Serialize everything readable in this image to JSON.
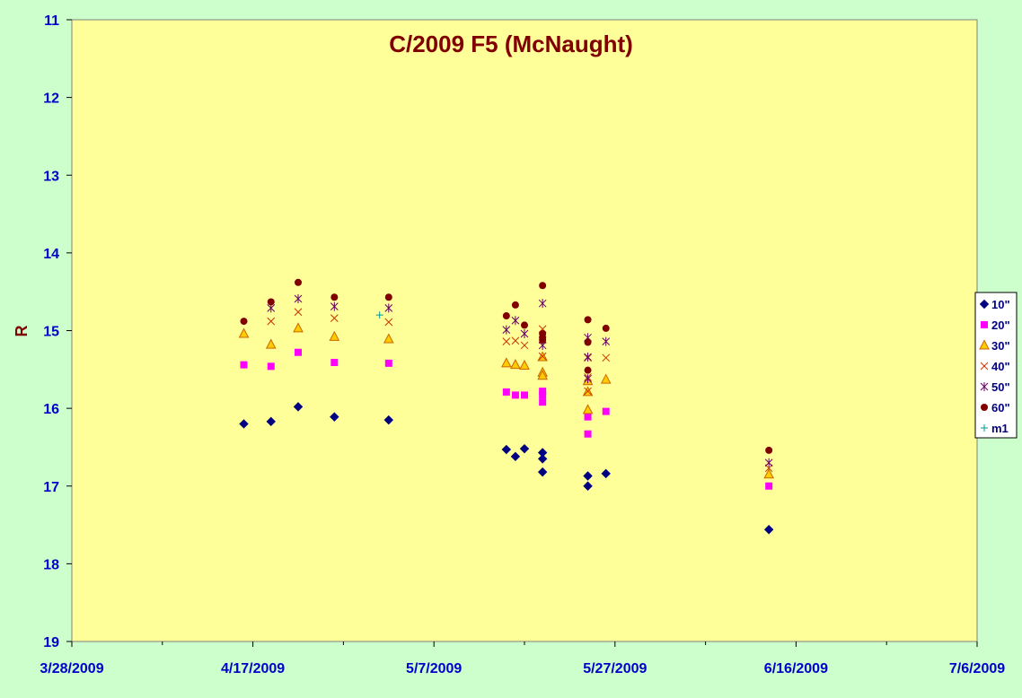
{
  "chart_data": {
    "type": "scatter",
    "title": "C/2009 F5 (McNaught)",
    "ylabel": "R",
    "xlabel": "",
    "xlim": [
      "3/28/2009",
      "7/6/2009"
    ],
    "ylim": [
      11,
      19
    ],
    "y_inverted": true,
    "x_ticks": [
      "3/28/2009",
      "4/17/2009",
      "5/7/2009",
      "5/27/2009",
      "6/16/2009",
      "7/6/2009"
    ],
    "y_ticks": [
      11,
      12,
      13,
      14,
      15,
      16,
      17,
      18,
      19
    ],
    "grid": false,
    "legend_position": "right",
    "plot_background": "#ffff99",
    "page_background": "#ccffcc",
    "series": [
      {
        "name": "10\"",
        "marker": "diamond",
        "color": "#000080",
        "points": [
          [
            "4/16/2009",
            16.2
          ],
          [
            "4/19/2009",
            16.17
          ],
          [
            "4/22/2009",
            15.98
          ],
          [
            "4/26/2009",
            16.11
          ],
          [
            "5/2/2009",
            16.15
          ],
          [
            "5/15/2009",
            16.53
          ],
          [
            "5/16/2009",
            16.62
          ],
          [
            "5/17/2009",
            16.52
          ],
          [
            "5/19/2009",
            16.57
          ],
          [
            "5/19/2009",
            16.65
          ],
          [
            "5/19/2009",
            16.82
          ],
          [
            "5/24/2009",
            16.87
          ],
          [
            "5/24/2009",
            17.0
          ],
          [
            "5/26/2009",
            16.84
          ],
          [
            "6/13/2009",
            17.56
          ]
        ]
      },
      {
        "name": "20\"",
        "marker": "square",
        "color": "#ff00ff",
        "points": [
          [
            "4/16/2009",
            15.44
          ],
          [
            "4/19/2009",
            15.46
          ],
          [
            "4/22/2009",
            15.28
          ],
          [
            "4/26/2009",
            15.41
          ],
          [
            "5/2/2009",
            15.42
          ],
          [
            "5/15/2009",
            15.79
          ],
          [
            "5/16/2009",
            15.83
          ],
          [
            "5/17/2009",
            15.83
          ],
          [
            "5/19/2009",
            15.78
          ],
          [
            "5/19/2009",
            15.83
          ],
          [
            "5/19/2009",
            15.92
          ],
          [
            "5/24/2009",
            16.11
          ],
          [
            "5/24/2009",
            16.33
          ],
          [
            "5/26/2009",
            16.04
          ],
          [
            "6/13/2009",
            17.0
          ]
        ]
      },
      {
        "name": "30\"",
        "marker": "triangle",
        "color": "#ff9900",
        "points": [
          [
            "4/16/2009",
            15.04
          ],
          [
            "4/19/2009",
            15.18
          ],
          [
            "4/22/2009",
            14.97
          ],
          [
            "4/26/2009",
            15.08
          ],
          [
            "5/2/2009",
            15.11
          ],
          [
            "5/15/2009",
            15.42
          ],
          [
            "5/16/2009",
            15.44
          ],
          [
            "5/17/2009",
            15.45
          ],
          [
            "5/19/2009",
            15.34
          ],
          [
            "5/19/2009",
            15.54
          ],
          [
            "5/19/2009",
            15.58
          ],
          [
            "5/24/2009",
            15.65
          ],
          [
            "5/24/2009",
            15.79
          ],
          [
            "5/24/2009",
            16.02
          ],
          [
            "5/26/2009",
            15.63
          ],
          [
            "6/13/2009",
            16.85
          ]
        ]
      },
      {
        "name": "40\"",
        "marker": "x",
        "color": "#cc3300",
        "points": [
          [
            "4/19/2009",
            14.88
          ],
          [
            "4/22/2009",
            14.76
          ],
          [
            "4/26/2009",
            14.84
          ],
          [
            "5/2/2009",
            14.89
          ],
          [
            "5/15/2009",
            15.14
          ],
          [
            "5/16/2009",
            15.13
          ],
          [
            "5/17/2009",
            15.19
          ],
          [
            "5/19/2009",
            14.98
          ],
          [
            "5/19/2009",
            15.12
          ],
          [
            "5/19/2009",
            15.33
          ],
          [
            "5/24/2009",
            15.35
          ],
          [
            "5/24/2009",
            15.6
          ],
          [
            "5/24/2009",
            15.78
          ],
          [
            "5/26/2009",
            15.35
          ],
          [
            "6/13/2009",
            16.77
          ]
        ]
      },
      {
        "name": "50\"",
        "marker": "star",
        "color": "#660066",
        "points": [
          [
            "4/19/2009",
            14.71
          ],
          [
            "4/22/2009",
            14.59
          ],
          [
            "4/26/2009",
            14.69
          ],
          [
            "5/2/2009",
            14.71
          ],
          [
            "5/15/2009",
            14.99
          ],
          [
            "5/16/2009",
            14.87
          ],
          [
            "5/17/2009",
            15.04
          ],
          [
            "5/19/2009",
            14.65
          ],
          [
            "5/19/2009",
            15.19
          ],
          [
            "5/24/2009",
            15.09
          ],
          [
            "5/24/2009",
            15.34
          ],
          [
            "5/24/2009",
            15.62
          ],
          [
            "5/26/2009",
            15.14
          ],
          [
            "6/13/2009",
            16.7
          ]
        ]
      },
      {
        "name": "60\"",
        "marker": "circle",
        "color": "#800000",
        "points": [
          [
            "4/16/2009",
            14.88
          ],
          [
            "4/19/2009",
            14.63
          ],
          [
            "4/22/2009",
            14.38
          ],
          [
            "4/26/2009",
            14.57
          ],
          [
            "5/2/2009",
            14.57
          ],
          [
            "5/15/2009",
            14.81
          ],
          [
            "5/16/2009",
            14.67
          ],
          [
            "5/17/2009",
            14.93
          ],
          [
            "5/19/2009",
            14.42
          ],
          [
            "5/19/2009",
            15.04
          ],
          [
            "5/19/2009",
            15.09
          ],
          [
            "5/19/2009",
            15.12
          ],
          [
            "5/24/2009",
            14.86
          ],
          [
            "5/24/2009",
            15.15
          ],
          [
            "5/24/2009",
            15.51
          ],
          [
            "5/26/2009",
            14.97
          ],
          [
            "6/13/2009",
            16.54
          ]
        ]
      },
      {
        "name": "m1",
        "marker": "plus",
        "color": "#009999",
        "points": [
          [
            "5/1/2009",
            14.8
          ]
        ]
      }
    ]
  }
}
